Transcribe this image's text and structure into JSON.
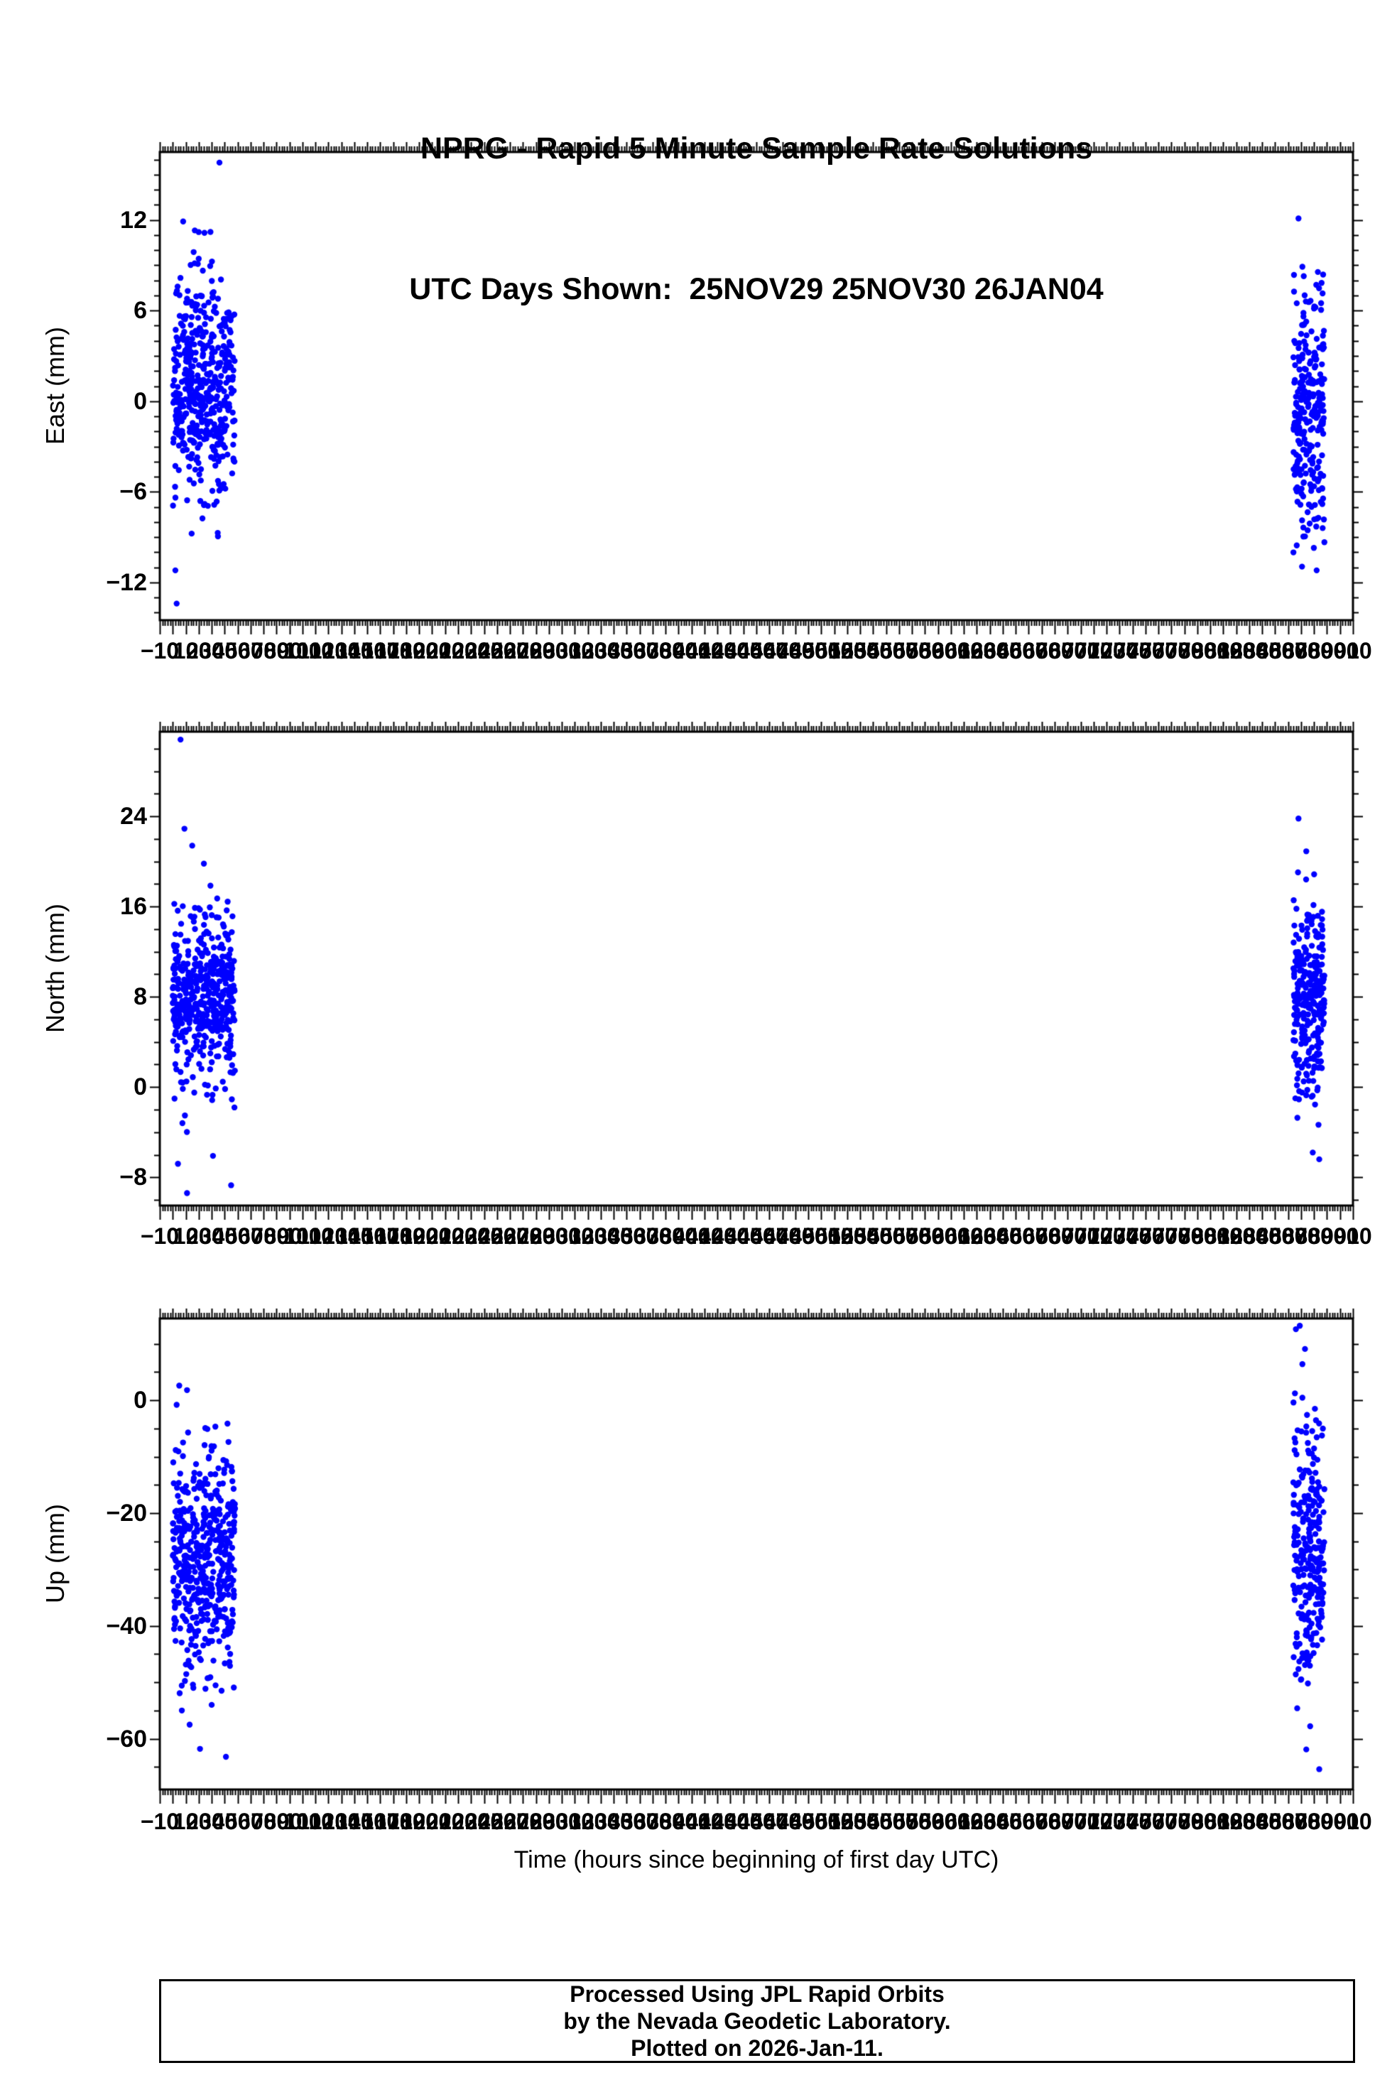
{
  "title": {
    "line1": "NPRG - Rapid 5 Minute Sample Rate Solutions",
    "line2": "UTC Days Shown:  25NOV29 25NOV30 26JAN04"
  },
  "xlabel": "Time (hours since beginning of first day UTC)",
  "footer": {
    "line1": "Processed Using JPL Rapid Orbits",
    "line2": "by the Nevada Geodetic Laboratory.",
    "line3": "Plotted on 2026-Jan-11."
  },
  "marker_color": "#0000ff",
  "axis_color": "#000000",
  "background_color": "#ffffff",
  "chart_data": [
    {
      "type": "scatter",
      "name": "east",
      "ylabel": "East (mm)",
      "xlim": [
        -10,
        910
      ],
      "ylim": [
        -14.5,
        16.5
      ],
      "x_major": 10,
      "x_minor": 2,
      "y_major": 6,
      "y_minor": 1,
      "xtick_label_step": 10,
      "ytick_values": [
        -12,
        -6,
        0,
        6,
        12
      ],
      "ytick_labels": [
        "−12",
        "−6",
        "0",
        "6",
        "12"
      ],
      "clusters": [
        {
          "x_range": [
            0,
            48
          ],
          "count": 480,
          "y_mean": 1.2,
          "y_std": 3.4,
          "y_clip": [
            -9.6,
            12.2
          ],
          "seed": 101
        },
        {
          "x_range": [
            864,
            888
          ],
          "count": 270,
          "y_mean": -0.6,
          "y_std": 3.8,
          "y_clip": [
            -11.6,
            9.4
          ],
          "seed": 102
        }
      ],
      "outliers": [
        [
          36,
          15.8
        ],
        [
          3,
          -13.4
        ],
        [
          2,
          -11.2
        ],
        [
          8,
          11.9
        ],
        [
          20,
          11.2
        ],
        [
          868,
          12.1
        ],
        [
          871,
          8.9
        ],
        [
          882,
          -11.2
        ]
      ]
    },
    {
      "type": "scatter",
      "name": "north",
      "ylabel": "North (mm)",
      "xlim": [
        -10,
        910
      ],
      "ylim": [
        -10.5,
        31.5
      ],
      "x_major": 10,
      "x_minor": 2,
      "y_major": 8,
      "y_minor": 2,
      "xtick_label_step": 10,
      "ytick_values": [
        -8,
        0,
        8,
        16,
        24
      ],
      "ytick_labels": [
        "−8",
        "0",
        "8",
        "16",
        "24"
      ],
      "clusters": [
        {
          "x_range": [
            0,
            48
          ],
          "count": 480,
          "y_mean": 8.2,
          "y_std": 3.6,
          "y_clip": [
            -4.8,
            18.6
          ],
          "seed": 201
        },
        {
          "x_range": [
            864,
            888
          ],
          "count": 270,
          "y_mean": 8.4,
          "y_std": 4.4,
          "y_clip": [
            -4.2,
            20.2
          ],
          "seed": 202
        }
      ],
      "outliers": [
        [
          6,
          30.8
        ],
        [
          9,
          22.9
        ],
        [
          15,
          21.4
        ],
        [
          24,
          19.8
        ],
        [
          4,
          -6.8
        ],
        [
          11,
          -9.4
        ],
        [
          31,
          -6.1
        ],
        [
          45,
          -8.7
        ],
        [
          868,
          23.8
        ],
        [
          874,
          20.9
        ],
        [
          879,
          -5.8
        ],
        [
          884,
          -6.4
        ]
      ]
    },
    {
      "type": "scatter",
      "name": "up",
      "ylabel": "Up (mm)",
      "xlim": [
        -10,
        910
      ],
      "ylim": [
        -69,
        14.5
      ],
      "x_major": 10,
      "x_minor": 2,
      "y_major": 20,
      "y_minor": 5,
      "xtick_label_step": 10,
      "ytick_values": [
        -60,
        -40,
        -20,
        0
      ],
      "ytick_labels": [
        "−60",
        "−40",
        "−20",
        "0"
      ],
      "clusters": [
        {
          "x_range": [
            0,
            48
          ],
          "count": 480,
          "y_mean": -28,
          "y_std": 9.5,
          "y_clip": [
            -52,
            -1.5
          ],
          "seed": 301
        },
        {
          "x_range": [
            864,
            888
          ],
          "count": 270,
          "y_mean": -26,
          "y_std": 10.5,
          "y_clip": [
            -50.5,
            1.5
          ],
          "seed": 302
        }
      ],
      "outliers": [
        [
          5,
          2.6
        ],
        [
          11,
          1.8
        ],
        [
          3,
          -0.8
        ],
        [
          7,
          -55
        ],
        [
          13,
          -57.5
        ],
        [
          21,
          -61.8
        ],
        [
          41,
          -63.2
        ],
        [
          30,
          -54
        ],
        [
          866,
          12.6
        ],
        [
          869,
          13.2
        ],
        [
          873,
          9.1
        ],
        [
          871,
          6.4
        ],
        [
          867,
          -54.6
        ],
        [
          877,
          -57.8
        ],
        [
          874,
          -61.9
        ],
        [
          884,
          -65.4
        ]
      ]
    }
  ]
}
